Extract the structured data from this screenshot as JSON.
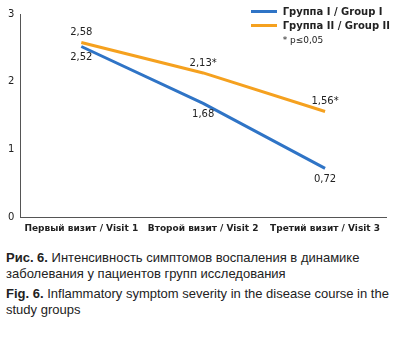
{
  "chart_data": {
    "type": "line",
    "title": "Рис. 6. Интенсивность симптомов воспаления в динамике заболевания у пациентов групп исследования",
    "subtitle": "Fig. 6. Inflammatory symptom severity in the disease course in the study groups",
    "categories": [
      "Первый визит / Visit 1",
      "Второй визит / Visit 2",
      "Третий визит / Visit 3"
    ],
    "series": [
      {
        "name": "Группа I / Group I",
        "color": "#2f74c6",
        "values": [
          2.52,
          1.68,
          0.72
        ],
        "value_labels": [
          "2,52",
          "1,68",
          "0,72"
        ]
      },
      {
        "name": "Группа II / Group II",
        "color": "#f5a11f",
        "values": [
          2.58,
          2.13,
          1.56
        ],
        "value_labels": [
          "2,58",
          "2,13*",
          "1,56*"
        ]
      }
    ],
    "ylim": [
      0,
      3
    ],
    "yticks": [
      0,
      1,
      2,
      3
    ],
    "grid": false,
    "legend": "upper right",
    "data_labels": true,
    "annotations": [
      "* p≤0,05"
    ]
  }
}
